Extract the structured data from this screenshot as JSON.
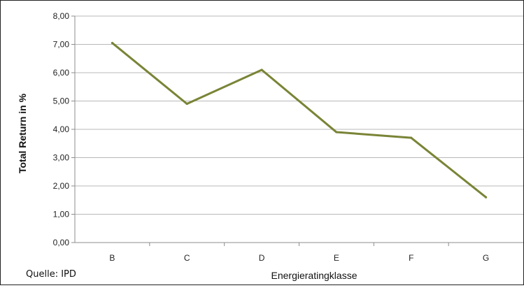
{
  "page": {
    "source_label": "Quelle: IPD"
  },
  "chart_data": {
    "type": "line",
    "categories": [
      "B",
      "C",
      "D",
      "E",
      "F",
      "G"
    ],
    "series": [
      {
        "values": [
          7.05,
          4.9,
          6.1,
          3.9,
          3.7,
          1.6
        ],
        "color": "#7a8436"
      }
    ],
    "xlabel": "Energieratingklasse",
    "ylabel": "Total Return in %",
    "ylim": [
      0,
      8
    ],
    "y_ticks": [
      "0,00",
      "1,00",
      "2,00",
      "3,00",
      "4,00",
      "5,00",
      "6,00",
      "7,00",
      "8,00"
    ],
    "grid": true,
    "legend": "none"
  }
}
